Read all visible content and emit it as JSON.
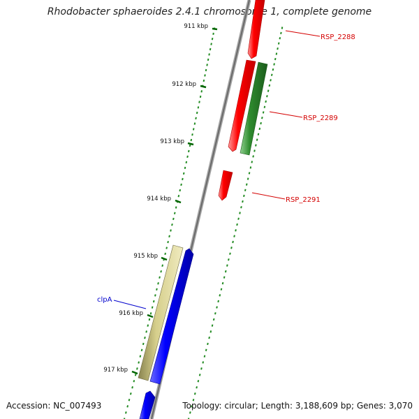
{
  "title": "Rhodobacter sphaeroides 2.4.1 chromosome 1, complete genome",
  "accession": "Accession: NC_007493",
  "topology": "Topology: circular; Length: 3,188,609 bp; Genes: 3,070",
  "ticks": [
    "911 kbp",
    "912 kbp",
    "913 kbp",
    "914 kbp",
    "915 kbp",
    "916 kbp",
    "917 kbp"
  ],
  "genes": [
    {
      "label": "RSP_2288",
      "color": "#ff0000"
    },
    {
      "label": "RSP_2289",
      "color": "#ff0000"
    },
    {
      "label": "",
      "color": "#228b22"
    },
    {
      "label": "RSP_2291",
      "color": "#ff0000"
    },
    {
      "label": "",
      "color": "#bdb76b"
    },
    {
      "label": "clpA",
      "color": "#0000ff"
    },
    {
      "label": "",
      "color": "#0000ff"
    }
  ],
  "colors": {
    "backbone": "#808080",
    "tick": "#006400",
    "red_label": "#d40000",
    "blue_label": "#0000cc"
  }
}
